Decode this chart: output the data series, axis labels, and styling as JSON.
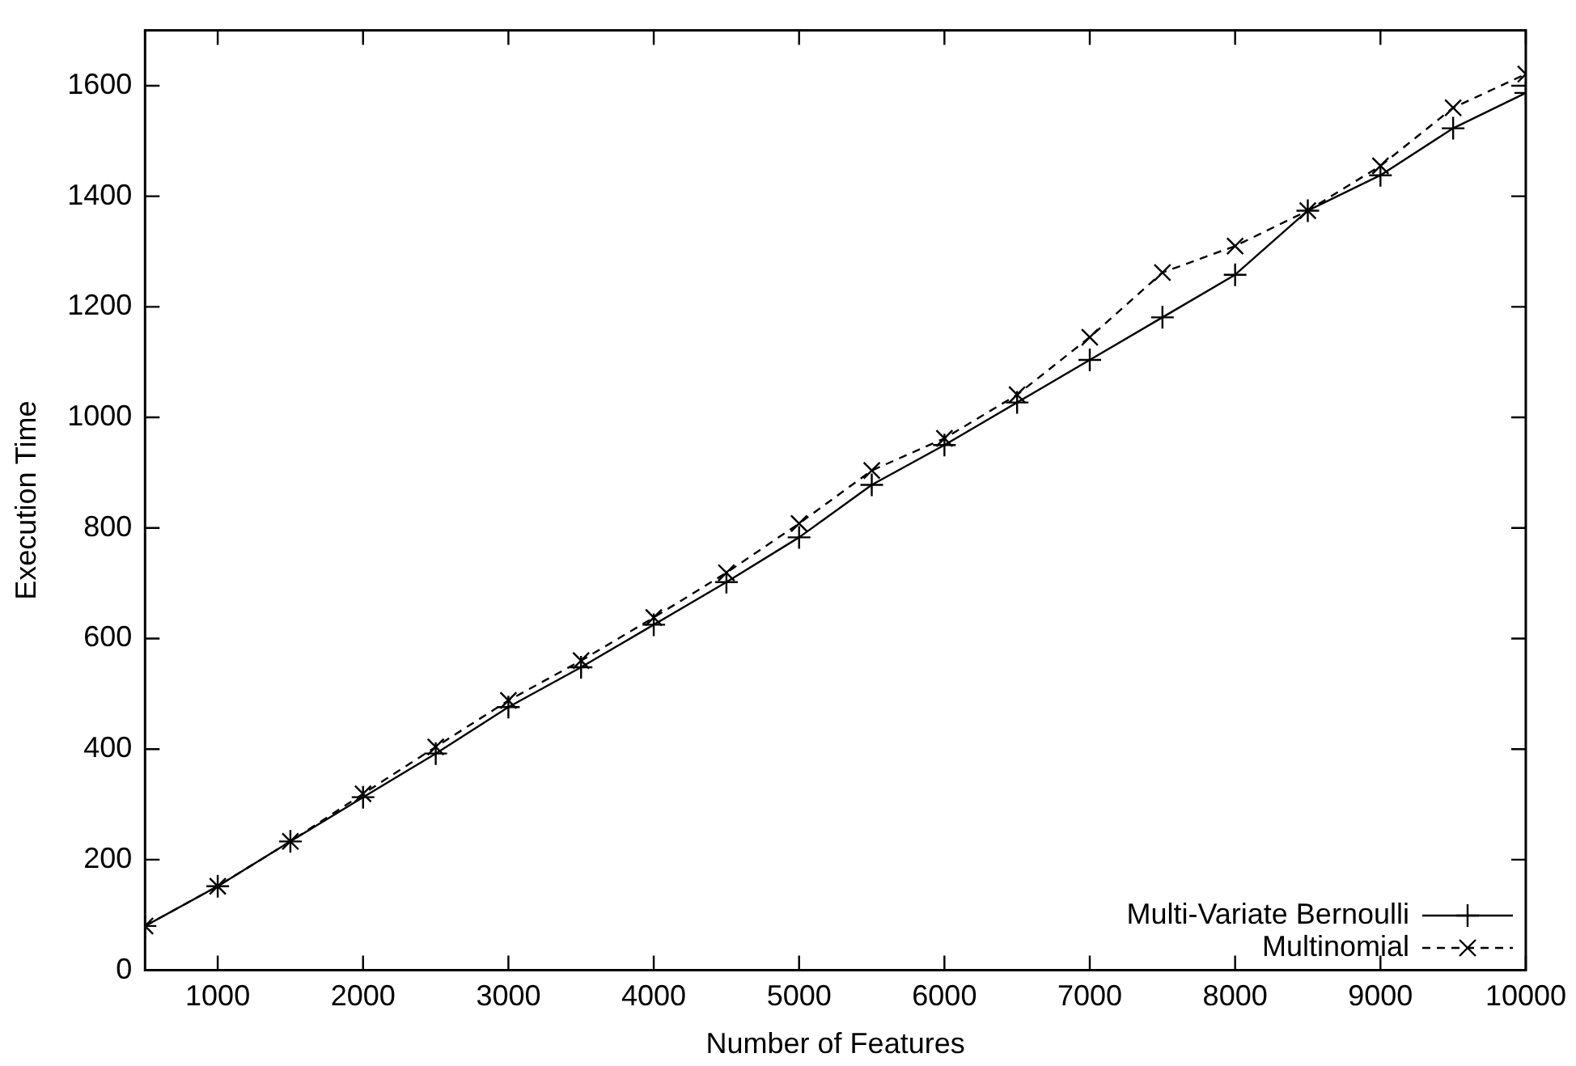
{
  "chart_data": {
    "type": "line",
    "xlabel": "Number of Features",
    "ylabel": "Execution Time",
    "x": [
      500,
      1000,
      1500,
      2000,
      2500,
      3000,
      3500,
      4000,
      4500,
      5000,
      5500,
      6000,
      6500,
      7000,
      7500,
      8000,
      8500,
      9000,
      9500,
      10000
    ],
    "series": [
      {
        "name": "Multi-Variate Bernoulli",
        "color": "#000000",
        "marker": "cross",
        "line_style": "solid",
        "values": [
          80,
          152,
          233,
          313,
          392,
          476,
          548,
          625,
          702,
          783,
          878,
          950,
          1027,
          1104,
          1181,
          1258,
          1374,
          1438,
          1523,
          1587
        ]
      },
      {
        "name": "Multinomial",
        "color": "#000000",
        "marker": "x",
        "line_style": "dashed",
        "values": [
          80,
          152,
          233,
          319,
          404,
          488,
          560,
          638,
          719,
          808,
          904,
          962,
          1041,
          1145,
          1262,
          1310,
          1374,
          1455,
          1560,
          1621
        ]
      }
    ],
    "xlim": [
      500,
      10000
    ],
    "xticks": [
      1000,
      2000,
      3000,
      4000,
      5000,
      6000,
      7000,
      8000,
      9000,
      10000
    ],
    "ylim": [
      0,
      1700
    ],
    "yticks": [
      0,
      200,
      400,
      600,
      800,
      1000,
      1200,
      1400,
      1600
    ],
    "grid": false,
    "legend": "bottom right"
  }
}
